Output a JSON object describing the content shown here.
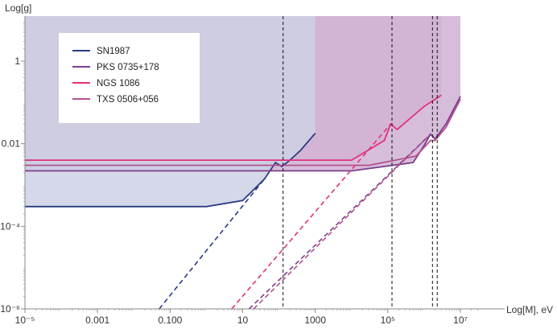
{
  "chart_data": {
    "type": "line",
    "xlabel": "Log[M], eV",
    "ylabel": "Log[g]",
    "x_scale": "log",
    "y_scale": "log",
    "xlim": [
      1e-05,
      30000000
    ],
    "ylim": [
      1e-06,
      10
    ],
    "x_ticks": [
      {
        "value": 1e-05,
        "label": "10⁻⁵"
      },
      {
        "value": 0.001,
        "label": "0.001"
      },
      {
        "value": 0.1,
        "label": "0.100"
      },
      {
        "value": 10,
        "label": "10"
      },
      {
        "value": 1000,
        "label": "1000"
      },
      {
        "value": 100000,
        "label": "10⁵"
      },
      {
        "value": 10000000,
        "label": "10⁷"
      }
    ],
    "y_ticks": [
      {
        "value": 1e-06,
        "label": "10⁻⁶"
      },
      {
        "value": 0.0001,
        "label": "10⁻⁴"
      },
      {
        "value": 0.01,
        "label": "0.01"
      },
      {
        "value": 1,
        "label": "1"
      }
    ],
    "legend_position": "top-left",
    "series": [
      {
        "name": "SN1987",
        "color": "#2b3b84",
        "fill": "#ccd1e4",
        "region_x_max": 1000,
        "limit_curve": [
          [
            1e-05,
            0.0003
          ],
          [
            1,
            0.0003
          ],
          [
            10,
            0.00042
          ],
          [
            40,
            0.0014
          ],
          [
            80,
            0.0035
          ],
          [
            120,
            0.0028
          ],
          [
            200,
            0.004
          ],
          [
            400,
            0.007
          ],
          [
            1000,
            0.018
          ]
        ],
        "dashed_line": [
          [
            0.05,
            1e-06
          ],
          [
            40,
            0.0014
          ]
        ],
        "vertical_marker": 130
      },
      {
        "name": "PKS 0735+178",
        "color": "#7b3f8c",
        "fill": "#cfb2d3",
        "region_x_max": 10000000,
        "limit_curve": [
          [
            1e-05,
            0.0022
          ],
          [
            10000,
            0.0022
          ],
          [
            500000,
            0.0035
          ],
          [
            1000000,
            0.009
          ],
          [
            1500000,
            0.017
          ],
          [
            2000000,
            0.013
          ],
          [
            4000000,
            0.03
          ],
          [
            10000000,
            0.14
          ]
        ],
        "dashed_line": [
          [
            15,
            1e-06
          ],
          [
            1500000,
            0.017
          ]
        ],
        "vertical_marker": 2300000
      },
      {
        "name": "NGS 1086",
        "color": "#e0327a",
        "fill": "#e8b4d0",
        "region_x_max": 3000000,
        "limit_curve": [
          [
            1e-05,
            0.004
          ],
          [
            10000,
            0.004
          ],
          [
            80000,
            0.012
          ],
          [
            120000,
            0.03
          ],
          [
            180000,
            0.022
          ],
          [
            1000000,
            0.08
          ],
          [
            3000000,
            0.15
          ]
        ],
        "dashed_line": [
          [
            5,
            1e-06
          ],
          [
            120000,
            0.03
          ]
        ],
        "vertical_marker": 130000
      },
      {
        "name": "TXS 0506+056",
        "color": "#b3508f",
        "fill": "#c089b9",
        "region_x_max": 1000,
        "limit_curve": [
          [
            1e-05,
            0.003
          ],
          [
            30000,
            0.003
          ],
          [
            600000,
            0.005
          ],
          [
            1500000,
            0.012
          ],
          [
            2000000,
            0.012
          ],
          [
            4000000,
            0.025
          ],
          [
            10000000,
            0.12
          ]
        ],
        "dashed_line": [
          [
            20,
            1e-06
          ],
          [
            1300000,
            0.015
          ]
        ],
        "vertical_marker": 1700000
      }
    ]
  }
}
